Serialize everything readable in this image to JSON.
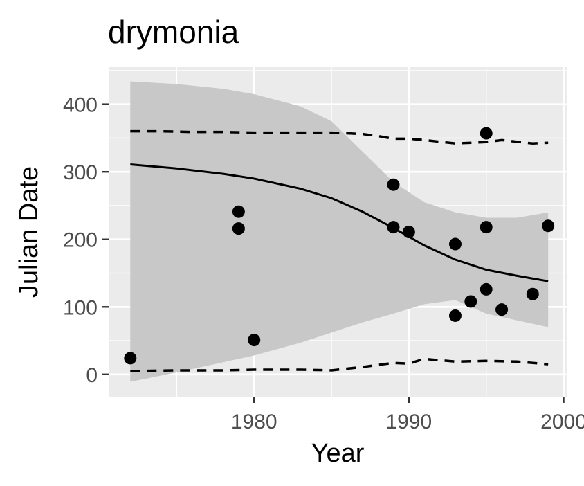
{
  "chart_data": {
    "type": "scatter",
    "title": "drymonia",
    "xlabel": "Year",
    "ylabel": "Julian Date",
    "xlim": [
      1970.6,
      2000.2
    ],
    "ylim": [
      -33,
      455
    ],
    "x_ticks": [
      1980,
      1990,
      2000
    ],
    "y_ticks": [
      0,
      100,
      200,
      300,
      400
    ],
    "grid": true,
    "background": "#ebebeb",
    "grid_color": "#ffffff",
    "ribbon_color": "#c8c8c8",
    "points": [
      {
        "x": 1972,
        "y": 24
      },
      {
        "x": 1979,
        "y": 241
      },
      {
        "x": 1979,
        "y": 216
      },
      {
        "x": 1980,
        "y": 51
      },
      {
        "x": 1989,
        "y": 281
      },
      {
        "x": 1989,
        "y": 218
      },
      {
        "x": 1990,
        "y": 211
      },
      {
        "x": 1993,
        "y": 193
      },
      {
        "x": 1993,
        "y": 87
      },
      {
        "x": 1994,
        "y": 108
      },
      {
        "x": 1995,
        "y": 357
      },
      {
        "x": 1995,
        "y": 218
      },
      {
        "x": 1995,
        "y": 126
      },
      {
        "x": 1996,
        "y": 96
      },
      {
        "x": 1998,
        "y": 119
      },
      {
        "x": 1999,
        "y": 220
      }
    ],
    "fit_line": {
      "x": [
        1972,
        1975,
        1978,
        1980,
        1983,
        1985,
        1987,
        1989,
        1991,
        1993,
        1995,
        1997,
        1999
      ],
      "y": [
        311,
        305,
        297,
        290,
        275,
        261,
        241,
        217,
        191,
        170,
        155,
        146,
        138
      ]
    },
    "confidence_band": {
      "x": [
        1972,
        1975,
        1978,
        1980,
        1983,
        1985,
        1987,
        1989,
        1991,
        1993,
        1995,
        1997,
        1998,
        1999
      ],
      "upper": [
        434,
        430,
        423,
        415,
        397,
        375,
        330,
        285,
        255,
        240,
        232,
        232,
        236,
        240
      ],
      "lower": [
        -11,
        3,
        18,
        28,
        47,
        62,
        77,
        90,
        104,
        110,
        90,
        80,
        75,
        70
      ]
    },
    "upper_bound_line": {
      "x": [
        1972,
        1974,
        1976,
        1978,
        1980,
        1982,
        1985,
        1987,
        1988,
        1989,
        1990,
        1991,
        1993,
        1995,
        1996,
        1998,
        1999
      ],
      "y": [
        360,
        360,
        359,
        359,
        358,
        358,
        358,
        356,
        353,
        349,
        349,
        347,
        342,
        344,
        347,
        342,
        343
      ]
    },
    "lower_bound_line": {
      "x": [
        1972,
        1975,
        1978,
        1980,
        1983,
        1985,
        1987,
        1989,
        1990,
        1991,
        1993,
        1995,
        1997,
        1999
      ],
      "y": [
        5,
        6,
        6,
        7,
        7,
        6,
        11,
        17,
        16,
        23,
        19,
        20,
        19,
        15
      ]
    }
  }
}
